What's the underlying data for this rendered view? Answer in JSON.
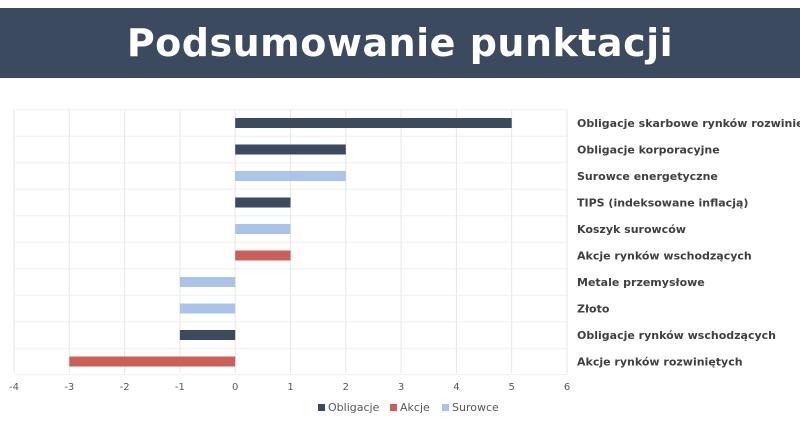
{
  "header": {
    "title": "Podsumowanie punktacji"
  },
  "chart_data": {
    "type": "bar",
    "orientation": "horizontal",
    "xlim": [
      -4,
      6
    ],
    "x_ticks": [
      "-4",
      "-3",
      "-2",
      "-1",
      "0",
      "1",
      "2",
      "3",
      "4",
      "5",
      "6"
    ],
    "grid": true,
    "legend_position": "bottom",
    "categories": [
      "Obligacje skarbowe rynków rozwiniętych",
      "Obligacje korporacyjne",
      "Surowce energetyczne",
      "TIPS (indeksowane inflacją)",
      "Koszyk surowców",
      "Akcje rynków wschodzących",
      "Metale przemysłowe",
      "Złoto",
      "Obligacje  rynków wschodzących",
      "Akcje rynków rozwiniętych"
    ],
    "values": [
      5,
      2,
      2,
      1,
      1,
      1,
      -1,
      -1,
      -1,
      -3
    ],
    "groups": [
      "Obligacje",
      "Obligacje",
      "Surowce",
      "Obligacje",
      "Surowce",
      "Akcje",
      "Surowce",
      "Surowce",
      "Obligacje",
      "Akcje"
    ],
    "legend": [
      {
        "name": "Obligacje",
        "color": "#3b4a5e"
      },
      {
        "name": "Akcje",
        "color": "#cc5f5a"
      },
      {
        "name": "Surowce",
        "color": "#a9c4e8"
      }
    ]
  }
}
